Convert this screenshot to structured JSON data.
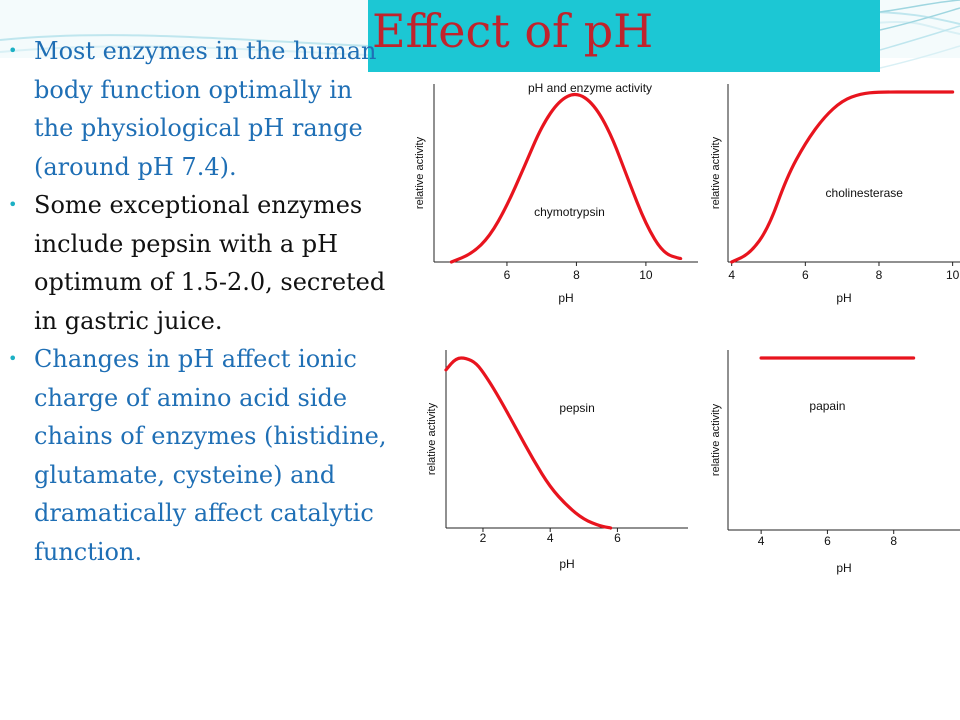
{
  "title": "Effect of pH",
  "bullets": [
    {
      "text": "Most enzymes in the human body function optimally in the physiological pH range (around pH 7.4).",
      "color": "#111111"
    },
    {
      "text": "Some exceptional enzymes include pepsin with a pH optimum of 1.5-2.0, secreted in gastric juice.",
      "color": "#111111"
    },
    {
      "text": "Changes in pH affect ionic charge of amino acid side chains of enzymes (histidine, glutamate, cysteine) and dramatically affect catalytic function.",
      "color": "#1f6fb5"
    }
  ],
  "figure_title": "pH and enzyme activity",
  "colors": {
    "curve": "#e8141e",
    "title_bg": "#1cc7d4",
    "title_text": "#c0232c"
  },
  "chart_data": [
    {
      "type": "line",
      "title": "pH and enzyme activity",
      "xlabel": "pH",
      "ylabel": "relative activity",
      "xlim": [
        3.9,
        11.5
      ],
      "ylim": [
        0,
        1
      ],
      "xticks": [
        6,
        8,
        10
      ],
      "grid": false,
      "series": [
        {
          "name": "chymotrypsin",
          "x": [
            4.4,
            5.0,
            5.5,
            6.0,
            6.5,
            7.0,
            7.5,
            8.0,
            8.5,
            9.0,
            9.5,
            10.0,
            10.5,
            11.0
          ],
          "y": [
            0.0,
            0.05,
            0.15,
            0.33,
            0.56,
            0.8,
            0.95,
            1.0,
            0.93,
            0.75,
            0.48,
            0.22,
            0.05,
            0.02
          ]
        }
      ]
    },
    {
      "type": "line",
      "xlabel": "pH",
      "ylabel": "relative activity",
      "xlim": [
        3.9,
        10.2
      ],
      "ylim": [
        0,
        1
      ],
      "xticks": [
        4,
        6,
        8,
        10
      ],
      "grid": false,
      "series": [
        {
          "name": "cholinesterase",
          "x": [
            4.0,
            4.5,
            5.0,
            5.5,
            6.0,
            6.5,
            7.0,
            7.5,
            8.0,
            9.0,
            10.0
          ],
          "y": [
            0.0,
            0.05,
            0.2,
            0.5,
            0.7,
            0.85,
            0.95,
            0.99,
            1.0,
            1.0,
            1.0
          ]
        }
      ]
    },
    {
      "type": "line",
      "xlabel": "pH",
      "ylabel": "relative activity",
      "xlim": [
        0.9,
        8.1
      ],
      "ylim": [
        0,
        1
      ],
      "xticks": [
        2,
        4,
        6
      ],
      "grid": false,
      "series": [
        {
          "name": "pepsin",
          "x": [
            0.9,
            1.2,
            1.5,
            1.8,
            2.1,
            2.5,
            3.0,
            3.5,
            4.0,
            4.5,
            5.0,
            5.5,
            5.8
          ],
          "y": [
            0.93,
            1.0,
            1.0,
            0.97,
            0.89,
            0.76,
            0.58,
            0.4,
            0.24,
            0.13,
            0.05,
            0.01,
            0.0
          ]
        }
      ]
    },
    {
      "type": "line",
      "xlabel": "pH",
      "ylabel": "relative activity",
      "xlim": [
        3.0,
        10.0
      ],
      "ylim": [
        0,
        1
      ],
      "xticks": [
        4,
        6,
        8
      ],
      "grid": false,
      "series": [
        {
          "name": "papain",
          "x": [
            4.0,
            8.6
          ],
          "y": [
            1.0,
            1.0
          ]
        }
      ]
    }
  ]
}
